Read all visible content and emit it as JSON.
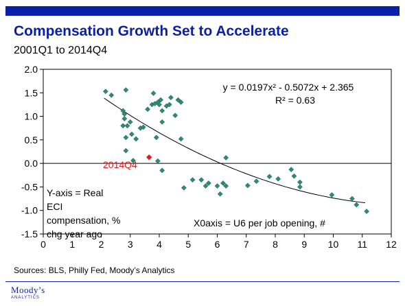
{
  "header": {
    "title": "Compensation Growth Set to Accelerate",
    "subtitle": "2001Q1 to 2014Q4"
  },
  "footer": {
    "source": "Sources: BLS, Philly Fed, Moody’s Analytics",
    "logo_text": "Moody’s",
    "logo_subtext": "ANALYTICS"
  },
  "colors": {
    "accent": "#0a1fa8",
    "points": "#2e8b6e",
    "highlight": "#e8191c"
  },
  "chart_data": {
    "type": "scatter",
    "title": "Compensation Growth Set to Accelerate",
    "subtitle": "2001Q1 to 2014Q4",
    "xlabel": "",
    "ylabel": "",
    "xlim": [
      0,
      12
    ],
    "ylim": [
      -1.5,
      2.0
    ],
    "xticks": [
      "0",
      "1",
      "2",
      "3",
      "4",
      "5",
      "6",
      "7",
      "8",
      "9",
      "10",
      "11",
      "12"
    ],
    "yticks": [
      "2.0",
      "1.5",
      "1.0",
      "0.5",
      "0.0",
      "-0.5",
      "-1.0",
      "-1.5"
    ],
    "grid": false,
    "legend": "none",
    "annotations": {
      "equation": "y = 0.0197x² - 0.5072x + 2.365",
      "r_squared": "R² = 0.63",
      "y_axis_note": [
        "Y-axis = Real",
        "ECI",
        "compensation, %",
        "chg year ago"
      ],
      "x_axis_note": "X0axis = U6 per job opening, #",
      "highlight_label": "2014Q4"
    },
    "trendline": {
      "a": 0.0197,
      "b": -0.5072,
      "c": 2.365,
      "x_range": [
        2.1,
        11.1
      ]
    },
    "points": [
      {
        "x": 2.15,
        "y": 1.53
      },
      {
        "x": 2.35,
        "y": 1.45
      },
      {
        "x": 2.85,
        "y": 1.56
      },
      {
        "x": 2.75,
        "y": 1.12
      },
      {
        "x": 2.8,
        "y": 1.05
      },
      {
        "x": 2.8,
        "y": 0.95
      },
      {
        "x": 2.75,
        "y": 0.8
      },
      {
        "x": 2.9,
        "y": 0.8
      },
      {
        "x": 3.0,
        "y": 0.88
      },
      {
        "x": 3.05,
        "y": 0.62
      },
      {
        "x": 3.2,
        "y": 0.52
      },
      {
        "x": 3.35,
        "y": 0.75
      },
      {
        "x": 3.45,
        "y": 0.77
      },
      {
        "x": 2.85,
        "y": 0.55
      },
      {
        "x": 2.85,
        "y": 0.27
      },
      {
        "x": 3.1,
        "y": 0.06
      },
      {
        "x": 3.6,
        "y": 1.15
      },
      {
        "x": 3.75,
        "y": 1.25
      },
      {
        "x": 3.8,
        "y": 1.49
      },
      {
        "x": 3.85,
        "y": 1.27
      },
      {
        "x": 3.95,
        "y": 1.3
      },
      {
        "x": 4.05,
        "y": 1.35
      },
      {
        "x": 4.0,
        "y": 1.25
      },
      {
        "x": 4.1,
        "y": 1.12
      },
      {
        "x": 4.1,
        "y": 0.88
      },
      {
        "x": 4.25,
        "y": 1.22
      },
      {
        "x": 4.35,
        "y": 1.25
      },
      {
        "x": 4.4,
        "y": 1.4
      },
      {
        "x": 4.55,
        "y": 1.02
      },
      {
        "x": 4.65,
        "y": 1.35
      },
      {
        "x": 4.75,
        "y": 1.3
      },
      {
        "x": 3.9,
        "y": 0.55
      },
      {
        "x": 4.75,
        "y": 0.52
      },
      {
        "x": 3.95,
        "y": 0.05
      },
      {
        "x": 4.1,
        "y": -0.15
      },
      {
        "x": 4.85,
        "y": -0.52
      },
      {
        "x": 5.15,
        "y": -0.35
      },
      {
        "x": 5.45,
        "y": -0.35
      },
      {
        "x": 5.6,
        "y": -0.48
      },
      {
        "x": 5.7,
        "y": -0.42
      },
      {
        "x": 6.0,
        "y": -0.48
      },
      {
        "x": 6.1,
        "y": -0.65
      },
      {
        "x": 6.2,
        "y": -0.42
      },
      {
        "x": 6.3,
        "y": -0.48
      },
      {
        "x": 6.3,
        "y": 0.12
      },
      {
        "x": 7.05,
        "y": -0.47
      },
      {
        "x": 7.35,
        "y": -0.38
      },
      {
        "x": 7.8,
        "y": -0.28
      },
      {
        "x": 8.1,
        "y": -0.33
      },
      {
        "x": 8.55,
        "y": -0.13
      },
      {
        "x": 8.65,
        "y": -0.27
      },
      {
        "x": 8.85,
        "y": -0.4
      },
      {
        "x": 8.85,
        "y": -0.5
      },
      {
        "x": 9.95,
        "y": -0.67
      },
      {
        "x": 10.65,
        "y": -0.75
      },
      {
        "x": 10.8,
        "y": -0.88
      },
      {
        "x": 11.15,
        "y": -1.02
      }
    ],
    "highlight_point": {
      "label": "2014Q4",
      "x": 3.65,
      "y": 0.13
    }
  }
}
